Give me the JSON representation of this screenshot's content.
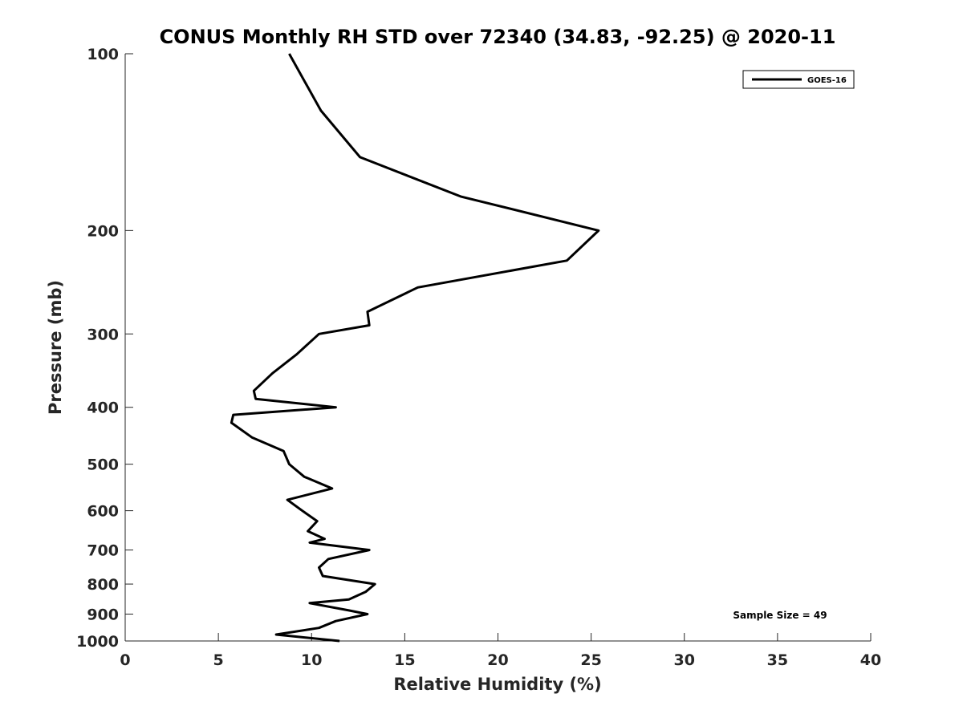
{
  "chart_data": {
    "type": "line",
    "title": "CONUS Monthly RH STD over 72340 (34.83, -92.25) @ 2020-11",
    "xlabel": "Relative Humidity (%)",
    "ylabel": "Pressure (mb)",
    "xlim": [
      0,
      40
    ],
    "ylim": [
      100,
      1000
    ],
    "y_scale": "log",
    "y_reversed": true,
    "x_ticks": [
      0,
      5,
      10,
      15,
      20,
      25,
      30,
      35,
      40
    ],
    "y_ticks": [
      100,
      200,
      300,
      400,
      500,
      600,
      700,
      800,
      900,
      1000
    ],
    "grid": false,
    "legend": {
      "placement": "top-right",
      "entries": [
        "GOES-16"
      ]
    },
    "annotation": "Sample Size = 49",
    "series": [
      {
        "name": "GOES-16",
        "color": "#000000",
        "points": [
          [
            8.8,
            100
          ],
          [
            10.5,
            125
          ],
          [
            12.6,
            150
          ],
          [
            18.0,
            175
          ],
          [
            25.4,
            200
          ],
          [
            23.7,
            225
          ],
          [
            15.7,
            250
          ],
          [
            13.0,
            275
          ],
          [
            13.1,
            290
          ],
          [
            10.4,
            300
          ],
          [
            9.2,
            325
          ],
          [
            7.9,
            350
          ],
          [
            6.9,
            375
          ],
          [
            7.0,
            387
          ],
          [
            11.3,
            400
          ],
          [
            5.8,
            412
          ],
          [
            5.7,
            425
          ],
          [
            6.8,
            450
          ],
          [
            8.5,
            475
          ],
          [
            8.8,
            500
          ],
          [
            9.6,
            525
          ],
          [
            11.1,
            550
          ],
          [
            8.7,
            575
          ],
          [
            9.5,
            600
          ],
          [
            10.3,
            625
          ],
          [
            9.8,
            650
          ],
          [
            10.7,
            670
          ],
          [
            9.9,
            680
          ],
          [
            13.1,
            700
          ],
          [
            10.9,
            725
          ],
          [
            10.4,
            750
          ],
          [
            10.6,
            775
          ],
          [
            13.4,
            800
          ],
          [
            12.9,
            825
          ],
          [
            12.0,
            850
          ],
          [
            9.9,
            862
          ],
          [
            12.0,
            887
          ],
          [
            13.0,
            900
          ],
          [
            11.3,
            925
          ],
          [
            10.4,
            950
          ],
          [
            8.1,
            975
          ],
          [
            11.5,
            1000
          ]
        ]
      }
    ]
  }
}
